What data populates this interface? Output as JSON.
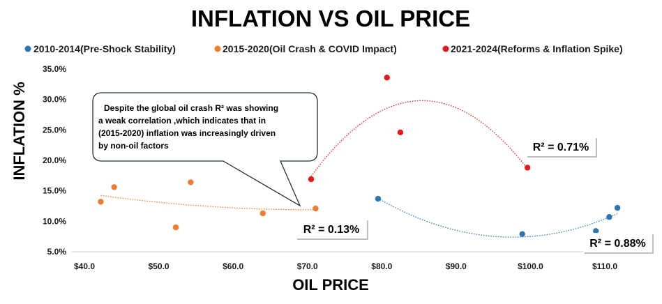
{
  "chart_data": {
    "type": "scatter",
    "title": "INFLATION VS OIL PRICE",
    "xlabel": "OIL PRICE",
    "ylabel": "INFLATION %",
    "xlim": [
      40,
      115
    ],
    "ylim": [
      5,
      35
    ],
    "x_ticks": [
      40,
      50,
      60,
      70,
      80,
      90,
      100,
      110
    ],
    "x_tick_labels": [
      "$40.0",
      "$50.0",
      "$60.0",
      "$70.0",
      "$80.0",
      "$90.0",
      "$100.0",
      "$110.0"
    ],
    "y_ticks": [
      5,
      10,
      15,
      20,
      25,
      30,
      35
    ],
    "y_tick_labels": [
      "5.0%",
      "10.0%",
      "15.0%",
      "20.0%",
      "25.0%",
      "30.0%",
      "35.0%"
    ],
    "grid": false,
    "legend_position": "top",
    "series": [
      {
        "name": "2010-2014(Pre-Shock Stability)",
        "color": "#2e75b6",
        "points": [
          [
            79.5,
            13.7
          ],
          [
            98.9,
            7.9
          ],
          [
            108.8,
            8.4
          ],
          [
            110.6,
            10.7
          ],
          [
            111.7,
            12.2
          ]
        ],
        "trendline": "polynomial",
        "r2_label": "R² = 0.88%"
      },
      {
        "name": "2015-2020(Oil Crash & COVID Impact)",
        "color": "#ed7d31",
        "points": [
          [
            42.2,
            13.2
          ],
          [
            44.0,
            15.6
          ],
          [
            52.3,
            9.0
          ],
          [
            54.3,
            16.4
          ],
          [
            64.0,
            11.3
          ],
          [
            71.1,
            12.1
          ]
        ],
        "trendline": "polynomial",
        "r2_label": "R² = 0.13%"
      },
      {
        "name": "2021-2024(Reforms & Inflation Spike)",
        "color": "#e31a1c",
        "points": [
          [
            70.5,
            16.9
          ],
          [
            80.7,
            33.6
          ],
          [
            82.5,
            24.6
          ],
          [
            99.6,
            18.8
          ]
        ],
        "trendline": "polynomial",
        "r2_label": "R² = 0.71%"
      }
    ],
    "annotation": {
      "lines": [
        "Despite the global oil crash R² was  showing",
        "a weak correlation ,which indicates that in",
        "(2015-2020) inflation was increasingly driven",
        "by non-oil factors"
      ]
    }
  }
}
